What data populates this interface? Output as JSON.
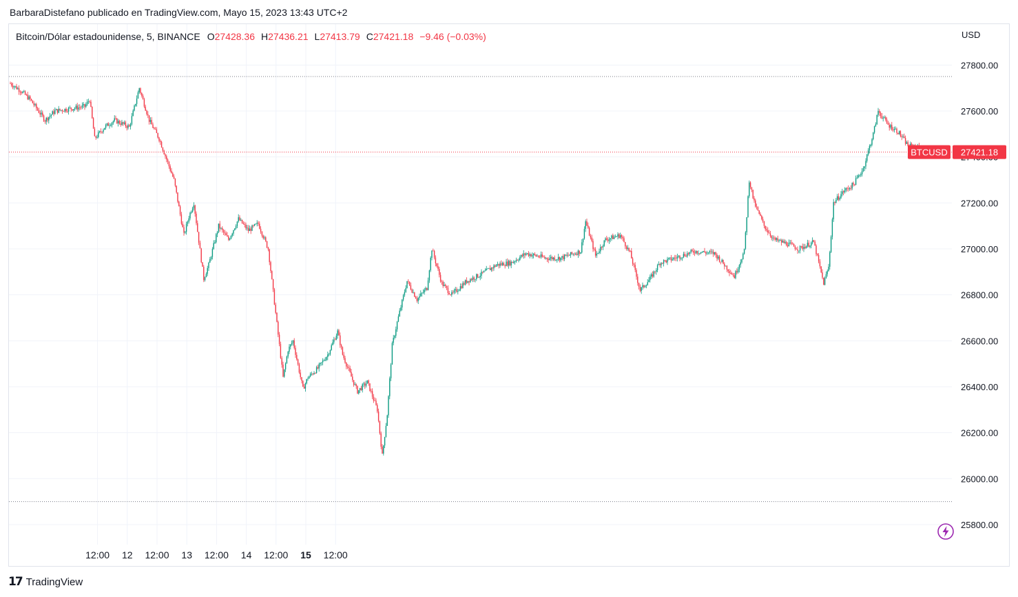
{
  "header": {
    "published_by": "BarbaraDistefano publicado en TradingView.com, Mayo 15, 2023 13:43 UTC+2"
  },
  "legend": {
    "symbol": "Bitcoin/Dólar estadounidense, 5, BINANCE",
    "open_label": "O",
    "open": "27428.36",
    "high_label": "H",
    "high": "27436.21",
    "low_label": "L",
    "low": "27413.79",
    "close_label": "C",
    "close": "27421.18",
    "change": "−9.46 (−0.03%)"
  },
  "price_scale": {
    "currency": "USD",
    "ticks": [
      "27800.00",
      "27600.00",
      "27400.00",
      "27200.00",
      "27000.00",
      "26800.00",
      "26600.00",
      "26400.00",
      "26200.00",
      "26000.00",
      "25800.00"
    ],
    "tick_values": [
      27800,
      27600,
      27400,
      27200,
      27000,
      26800,
      26600,
      26400,
      26200,
      26000,
      25800
    ]
  },
  "time_scale": {
    "ticks": [
      "12:00",
      "12",
      "12:00",
      "13",
      "12:00",
      "14",
      "12:00",
      "15",
      "12:00"
    ],
    "bold": [
      false,
      false,
      false,
      false,
      false,
      false,
      false,
      true,
      false
    ]
  },
  "last_price": {
    "symbol": "BTCUSD",
    "value": "27421.18"
  },
  "colors": {
    "up": "#089981",
    "down": "#f23645",
    "grid": "#f0f3fa",
    "text": "#131722",
    "accent": "#9c27b0"
  },
  "footer": {
    "brand": "TradingView",
    "logo": "17"
  },
  "chart_data": {
    "type": "candlestick",
    "timeframe": "5",
    "exchange": "BINANCE",
    "x_range": [
      "11 12:00 − 12h",
      "15 12:00"
    ],
    "ylim": [
      25700,
      27900
    ],
    "dotted_lines": [
      27750,
      25900,
      27421.18
    ],
    "path": [
      [
        0,
        27720
      ],
      [
        4,
        27690
      ],
      [
        8,
        27650
      ],
      [
        14,
        27560
      ],
      [
        18,
        27600
      ],
      [
        24,
        27610
      ],
      [
        30,
        27620
      ],
      [
        32,
        27650
      ],
      [
        34,
        27480
      ],
      [
        38,
        27530
      ],
      [
        42,
        27560
      ],
      [
        48,
        27530
      ],
      [
        52,
        27700
      ],
      [
        56,
        27560
      ],
      [
        60,
        27480
      ],
      [
        66,
        27300
      ],
      [
        70,
        27060
      ],
      [
        72,
        27140
      ],
      [
        74,
        27200
      ],
      [
        78,
        26870
      ],
      [
        80,
        26930
      ],
      [
        84,
        27100
      ],
      [
        88,
        27040
      ],
      [
        92,
        27130
      ],
      [
        96,
        27080
      ],
      [
        100,
        27110
      ],
      [
        104,
        27000
      ],
      [
        110,
        26440
      ],
      [
        112,
        26560
      ],
      [
        114,
        26600
      ],
      [
        118,
        26390
      ],
      [
        120,
        26440
      ],
      [
        124,
        26480
      ],
      [
        128,
        26540
      ],
      [
        132,
        26640
      ],
      [
        134,
        26540
      ],
      [
        138,
        26430
      ],
      [
        140,
        26380
      ],
      [
        144,
        26420
      ],
      [
        148,
        26300
      ],
      [
        150,
        26100
      ],
      [
        152,
        26280
      ],
      [
        154,
        26580
      ],
      [
        156,
        26680
      ],
      [
        160,
        26860
      ],
      [
        164,
        26780
      ],
      [
        168,
        26830
      ],
      [
        170,
        27000
      ],
      [
        174,
        26850
      ],
      [
        178,
        26800
      ],
      [
        184,
        26860
      ],
      [
        190,
        26890
      ],
      [
        196,
        26930
      ],
      [
        202,
        26940
      ],
      [
        208,
        26980
      ],
      [
        212,
        26970
      ],
      [
        216,
        26960
      ],
      [
        222,
        26960
      ],
      [
        230,
        26990
      ],
      [
        232,
        27120
      ],
      [
        236,
        26970
      ],
      [
        240,
        27040
      ],
      [
        246,
        27060
      ],
      [
        250,
        26980
      ],
      [
        254,
        26820
      ],
      [
        258,
        26870
      ],
      [
        262,
        26940
      ],
      [
        268,
        26960
      ],
      [
        276,
        26990
      ],
      [
        284,
        26980
      ],
      [
        292,
        26880
      ],
      [
        296,
        26990
      ],
      [
        298,
        27300
      ],
      [
        300,
        27200
      ],
      [
        304,
        27100
      ],
      [
        308,
        27040
      ],
      [
        314,
        27020
      ],
      [
        318,
        27000
      ],
      [
        324,
        27030
      ],
      [
        328,
        26850
      ],
      [
        330,
        26920
      ],
      [
        332,
        27200
      ],
      [
        336,
        27250
      ],
      [
        340,
        27280
      ],
      [
        344,
        27350
      ],
      [
        348,
        27500
      ],
      [
        350,
        27600
      ],
      [
        354,
        27540
      ],
      [
        358,
        27510
      ],
      [
        362,
        27450
      ],
      [
        366,
        27440
      ],
      [
        368,
        27421
      ]
    ],
    "path_units": "x = hours since 11 12:00 − 12h, y = price USD (approximate trace of candles)"
  }
}
